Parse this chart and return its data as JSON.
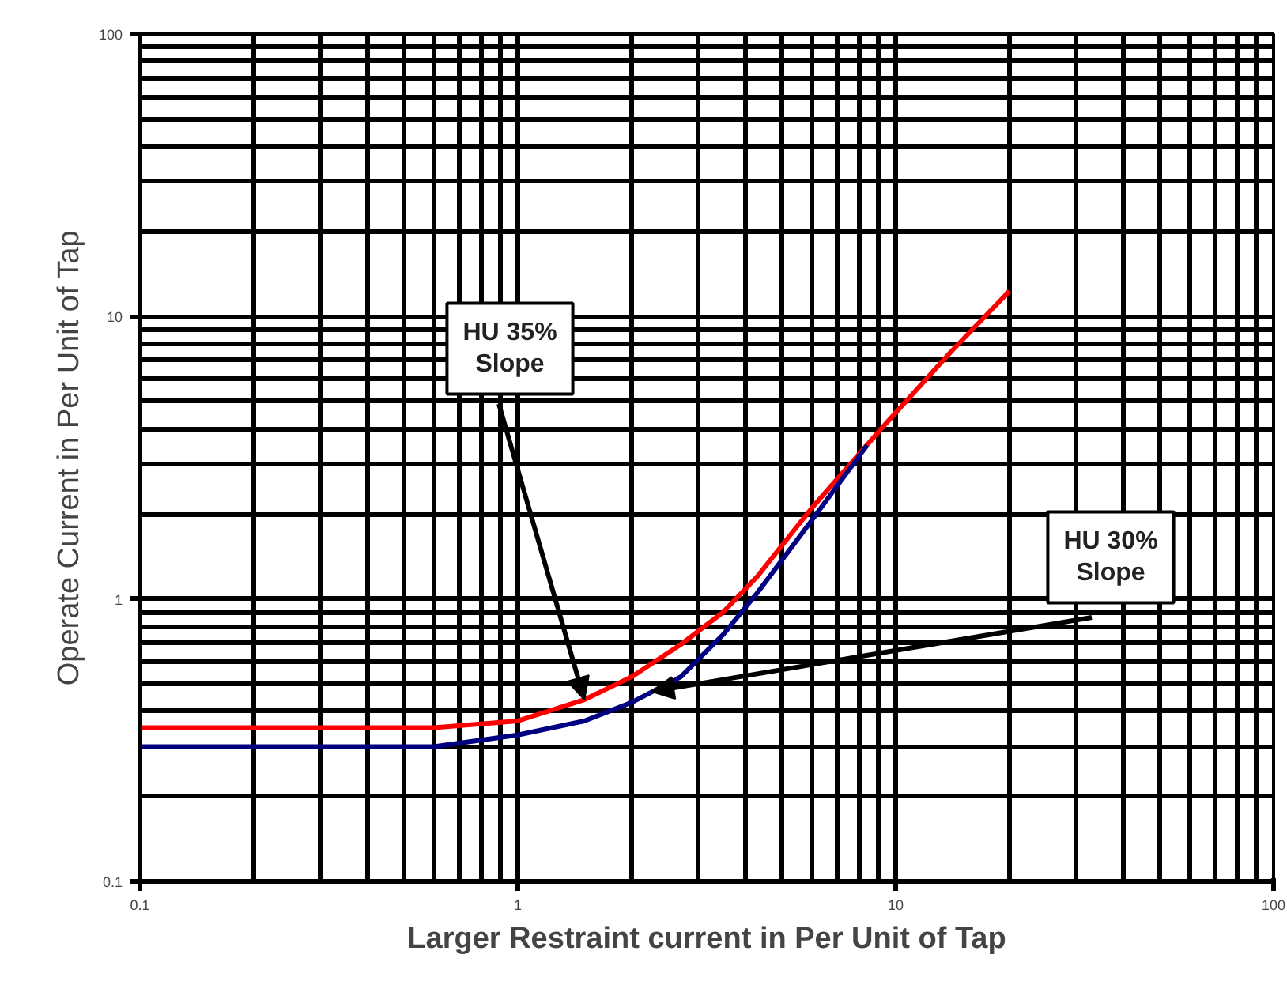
{
  "chart_data": {
    "type": "line",
    "xlabel": "Larger Restraint current in Per Unit of Tap",
    "ylabel": "Operate Current in Per Unit of Tap",
    "log": "xy",
    "grid": true,
    "xlim": [
      0.1,
      100
    ],
    "ylim": [
      0.1,
      100
    ],
    "xticks": [
      0.1,
      1,
      10,
      100
    ],
    "yticks": [
      0.1,
      1,
      10,
      100
    ],
    "series": [
      {
        "color": "#ff0000",
        "x": [
          0.1,
          0.6,
          1,
          1.5,
          2,
          2.7,
          3.5,
          4.3,
          6,
          9.3,
          14,
          20
        ],
        "values": [
          0.35,
          0.35,
          0.37,
          0.44,
          0.53,
          0.69,
          0.9,
          1.2,
          2.1,
          4.1,
          7.5,
          12.3
        ]
      },
      {
        "color": "#000080",
        "x": [
          0.1,
          0.6,
          1,
          1.5,
          2,
          2.7,
          3.5,
          4.3,
          6,
          8.4
        ],
        "values": [
          0.3,
          0.3,
          0.33,
          0.37,
          0.43,
          0.53,
          0.75,
          1.05,
          1.9,
          3.5
        ]
      }
    ],
    "annotations": [
      {
        "text": "HU 35%\nSlope",
        "x": 1.5,
        "y": 0.44
      },
      {
        "text": "HU 30%\nSlope",
        "x": 2.26,
        "y": 0.47
      }
    ]
  }
}
